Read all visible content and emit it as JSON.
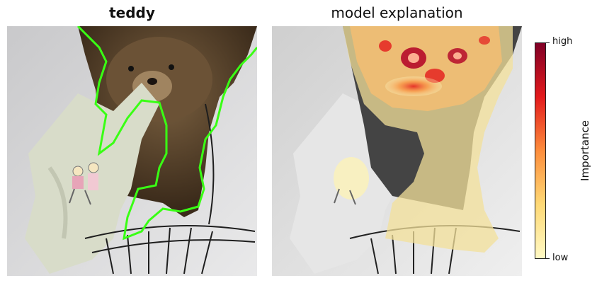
{
  "left_panel": {
    "title": "teddy"
  },
  "right_panel": {
    "title": "model explanation"
  },
  "colorbar": {
    "label": "Importance",
    "high_label": "high",
    "low_label": "low",
    "colors": [
      "#fff9c4",
      "#fed976",
      "#fd8d3c",
      "#e31a1c",
      "#800026"
    ]
  },
  "segmentation": {
    "outline_color": "#39ff14",
    "class": "teddy"
  }
}
